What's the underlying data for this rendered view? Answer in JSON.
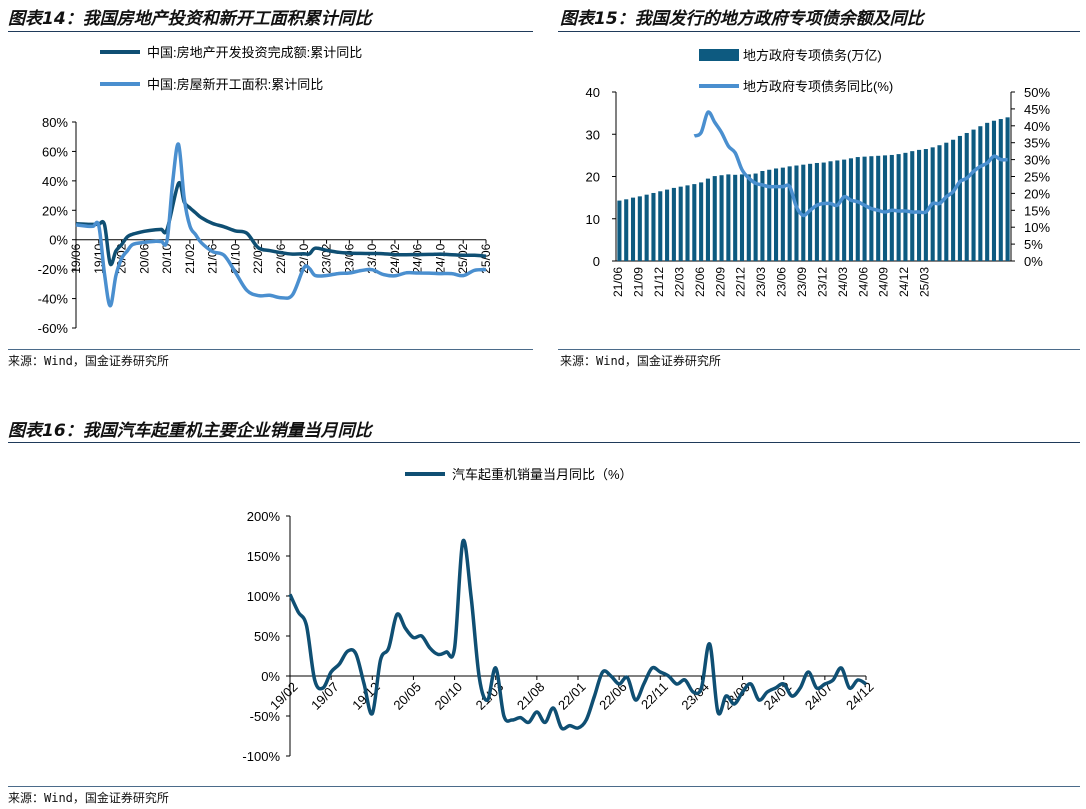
{
  "colors": {
    "dark": "#0f4f73",
    "light": "#4a8fcf",
    "bar": "#0d5a80",
    "axis": "#000000",
    "rule": "#1f3a5a"
  },
  "chart14": {
    "title": "图表14：我国房地产投资和新开工面积累计同比",
    "source": "来源：Wind，国金证券研究所",
    "chart_data": {
      "type": "line",
      "title": "我国房地产投资和新开工面积累计同比",
      "x_tick_labels": [
        "19/06",
        "19/10",
        "20/02",
        "20/06",
        "20/10",
        "21/02",
        "21/06",
        "21/10",
        "22/02",
        "22/06",
        "22/10",
        "23/02",
        "23/06",
        "23/10",
        "24/02",
        "24/06",
        "24/10",
        "25/02",
        "25/06"
      ],
      "y_tick_labels": [
        "80%",
        "60%",
        "40%",
        "20%",
        "0%",
        "-20%",
        "-40%",
        "-60%"
      ],
      "ylim": [
        -60,
        80
      ],
      "unit": "%",
      "series": [
        {
          "name": "中国:房地产开发投资完成额:累计同比",
          "color": "dark",
          "x": [
            0,
            2,
            3,
            4,
            5,
            6,
            7,
            8,
            9,
            10,
            12,
            14,
            15,
            16,
            18,
            19,
            20,
            21,
            22,
            24,
            26,
            28,
            30,
            32,
            34,
            36,
            38,
            40,
            41,
            42,
            44,
            46,
            48,
            50,
            52,
            54,
            56,
            58,
            60,
            62,
            64,
            66,
            68,
            70,
            72
          ],
          "y": [
            10.9,
            10.5,
            10.4,
            10.5,
            10.2,
            -16.3,
            -7.7,
            -3.3,
            1.9,
            3.8,
            5.7,
            6.8,
            7.0,
            7.0,
            38.3,
            25.6,
            21.6,
            18.3,
            15.0,
            11.0,
            8.8,
            6.0,
            4.4,
            -5.4,
            -7.4,
            -8.8,
            -9.8,
            -9.6,
            -9.6,
            -5.8,
            -7.2,
            -8.5,
            -9.1,
            -9.3,
            -9.4,
            -9.5,
            -10.1,
            -10.2,
            -10.1,
            -10.0,
            -9.8,
            -10.2,
            -10.5,
            -10.6,
            -11.2
          ]
        },
        {
          "name": "中国:房屋新开工面积:累计同比",
          "color": "light",
          "x": [
            0,
            2,
            3,
            4,
            5,
            6,
            7,
            8,
            9,
            10,
            12,
            14,
            15,
            16,
            17,
            18,
            19,
            20,
            21,
            22,
            24,
            26,
            28,
            30,
            32,
            34,
            36,
            38,
            40,
            41,
            42,
            44,
            46,
            48,
            50,
            52,
            54,
            56,
            58,
            60,
            62,
            64,
            66,
            68,
            70,
            72
          ],
          "y": [
            10.1,
            9.2,
            9.1,
            9.5,
            -23.2,
            -44.9,
            -24.4,
            -12.8,
            -7.6,
            -3.2,
            -1.8,
            -1.1,
            -1.2,
            -0.5,
            40,
            64.9,
            28.2,
            9.3,
            3.5,
            -2.0,
            -8.1,
            -10.6,
            -22.2,
            -34.4,
            -38.0,
            -37.8,
            -39.4,
            -37.6,
            -19.2,
            -19.6,
            -24.3,
            -24.3,
            -23.0,
            -22.6,
            -21.0,
            -20.4,
            -23.7,
            -24.5,
            -22.5,
            -22.6,
            -22.7,
            -23.0,
            -23.0,
            -24.4,
            -20.8,
            -20.3
          ]
        }
      ]
    }
  },
  "chart15": {
    "title": "图表15：我国发行的地方政府专项债余额及同比",
    "source": "来源：Wind，国金证券研究所",
    "chart_data": {
      "type": "bar",
      "title": "我国发行的地方政府专项债余额及同比",
      "x_tick_labels": [
        "21/06",
        "21/09",
        "21/12",
        "22/03",
        "22/06",
        "22/09",
        "22/12",
        "23/03",
        "23/06",
        "23/09",
        "23/12",
        "24/03",
        "24/06",
        "24/09",
        "24/12",
        "25/03"
      ],
      "y_left_tick_labels": [
        "0",
        "10",
        "20",
        "30",
        "40"
      ],
      "y_right_tick_labels": [
        "0%",
        "5%",
        "10%",
        "15%",
        "20%",
        "25%",
        "30%",
        "35%",
        "40%",
        "45%",
        "50%"
      ],
      "ylim_left": [
        0,
        40
      ],
      "ylim_right": [
        0,
        50
      ],
      "series": [
        {
          "name": "地方政府专项债务(万亿)",
          "type": "bar",
          "axis": "left",
          "color": "bar",
          "values": [
            14.3,
            14.6,
            15.0,
            15.3,
            15.7,
            16.1,
            16.5,
            16.9,
            17.3,
            17.6,
            17.9,
            18.2,
            18.6,
            19.5,
            20.1,
            20.3,
            20.5,
            20.4,
            20.5,
            20.5,
            20.7,
            21.3,
            21.6,
            21.9,
            22.1,
            22.4,
            22.6,
            22.8,
            23.0,
            23.2,
            23.3,
            23.6,
            23.8,
            24.0,
            24.3,
            24.6,
            24.7,
            24.8,
            24.9,
            25.0,
            25.1,
            25.3,
            25.6,
            26.0,
            26.3,
            26.5,
            26.9,
            27.4,
            28.0,
            28.7,
            29.6,
            30.3,
            31.1,
            31.9,
            32.7,
            33.2,
            33.6,
            34.0
          ]
        },
        {
          "name": "地方政府专项债务同比(%)",
          "type": "line",
          "axis": "right",
          "color": "light",
          "x": [
            11.5,
            12.5,
            13.5,
            14.5,
            15.5,
            16.5,
            17.5,
            18.5,
            19.5,
            20.5,
            21.5,
            22.5,
            23.5,
            24.5,
            25.5,
            26.5,
            27.5,
            28.5,
            29.5,
            30.5,
            31.5,
            32.5,
            33.5,
            34.5,
            35.5,
            36.5,
            37.5,
            38.5,
            39.5,
            40.5,
            41.5,
            42.5,
            43.5,
            44.5,
            45.5,
            46.5,
            47.5,
            48.5,
            49.5,
            50.5,
            51.5,
            52.5,
            53.5,
            54.5,
            55.5,
            56.5,
            57.5
          ],
          "y": [
            37,
            38,
            44,
            41,
            38,
            34,
            32,
            27,
            24.5,
            23,
            22.5,
            22,
            22,
            22,
            22,
            16,
            13.5,
            15,
            16.5,
            17,
            17,
            16.5,
            19,
            18,
            17.5,
            16.5,
            15.5,
            15,
            14.5,
            15,
            14.8,
            14.8,
            14.5,
            14.5,
            14.5,
            17,
            17,
            19,
            20.5,
            23.5,
            24.5,
            26.5,
            28,
            29,
            31,
            30,
            30
          ]
        }
      ]
    }
  },
  "chart16": {
    "title": "图表16：我国汽车起重机主要企业销量当月同比",
    "source": "来源：Wind，国金证券研究所",
    "chart_data": {
      "type": "line",
      "title": "我国汽车起重机主要企业销量当月同比",
      "x_tick_labels": [
        "19/02",
        "19/07",
        "19/12",
        "20/05",
        "20/10",
        "21/03",
        "21/08",
        "22/01",
        "22/06",
        "22/11",
        "23/04",
        "23/09",
        "24/02",
        "24/07",
        "24/12"
      ],
      "y_tick_labels": [
        "200%",
        "150%",
        "100%",
        "50%",
        "0%",
        "-50%",
        "-100%"
      ],
      "ylim": [
        -100,
        200
      ],
      "unit": "%",
      "series": [
        {
          "name": "汽车起重机销量当月同比（%）",
          "color": "dark",
          "x": [
            0,
            1,
            2,
            3,
            4,
            5,
            6,
            7,
            8,
            9,
            10,
            11,
            12,
            13,
            14,
            15,
            16,
            17,
            18,
            19,
            20,
            21,
            22,
            23,
            24,
            25,
            26,
            27,
            28,
            29,
            30,
            31,
            32,
            33,
            34,
            35,
            36,
            37,
            38,
            39,
            40,
            41,
            42,
            43,
            44,
            45,
            46,
            47,
            48,
            49,
            50,
            51,
            52,
            53,
            54,
            55,
            56,
            57,
            58,
            59,
            60,
            61,
            62,
            63,
            64,
            65,
            66,
            67,
            68,
            69,
            70
          ],
          "y": [
            102,
            80,
            63,
            -5,
            -15,
            5,
            15,
            31,
            28,
            -10,
            -47,
            20,
            35,
            77,
            60,
            48,
            50,
            35,
            27,
            30,
            35,
            168,
            100,
            -2,
            -30,
            10,
            -50,
            -55,
            -52,
            -58,
            -45,
            -58,
            -40,
            -65,
            -62,
            -65,
            -55,
            -25,
            5,
            0,
            -10,
            -2,
            -30,
            -10,
            10,
            5,
            0,
            -10,
            -5,
            -20,
            -15,
            40,
            -45,
            -25,
            -35,
            -20,
            -10,
            -30,
            -20,
            -15,
            -10,
            -25,
            -15,
            5,
            -15,
            -10,
            -5,
            10,
            -15,
            -5,
            -10
          ]
        }
      ]
    }
  }
}
